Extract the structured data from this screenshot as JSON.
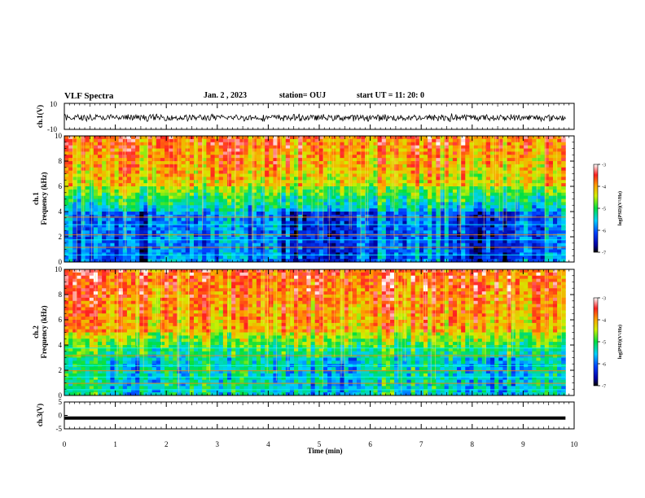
{
  "header": {
    "title": "VLF Spectra",
    "date": "Jan. 2 , 2023",
    "station": "station= OUJ",
    "start": "start  UT =   11: 20: 0"
  },
  "chart_data": [
    {
      "type": "line",
      "panel": "ch1-waveform",
      "ylabel": "ch.1(V)",
      "ylim": [
        -10,
        10
      ],
      "yticks": [
        "10",
        "-10"
      ],
      "xlim": [
        0,
        10
      ],
      "series": [
        {
          "description_only": true
        }
      ]
    },
    {
      "type": "heatmap",
      "panel": "ch1-spectrogram",
      "ylabel_line1": "ch.1",
      "ylabel_line2": "Frequency  (kHz)",
      "ylim": [
        0,
        10
      ],
      "yticks": [
        "0",
        "2",
        "4",
        "6",
        "8",
        "10"
      ],
      "xlim": [
        0,
        10
      ],
      "colorbar": {
        "label": "log(PSD)(V²/Hz)",
        "ticks": [
          "-3",
          "-4",
          "-5",
          "-6",
          "-7"
        ],
        "range": [
          -7,
          -3
        ]
      }
    },
    {
      "type": "heatmap",
      "panel": "ch2-spectrogram",
      "ylabel_line1": "ch.2",
      "ylabel_line2": "Frequency  (kHz)",
      "ylim": [
        0,
        10
      ],
      "yticks": [
        "0",
        "2",
        "4",
        "6",
        "8",
        "10"
      ],
      "xlim": [
        0,
        10
      ],
      "colorbar": {
        "label": "log(PSD)(V²/Hz)",
        "ticks": [
          "-3",
          "-4",
          "-5",
          "-6",
          "-7"
        ],
        "range": [
          -7,
          -3
        ]
      }
    },
    {
      "type": "line",
      "panel": "ch3-waveform",
      "ylabel": "ch.3(V)",
      "ylim": [
        -5,
        5
      ],
      "yticks": [
        "5",
        "0",
        "-5"
      ],
      "xlim": [
        0,
        10
      ],
      "series": [
        {
          "values": [
            -1,
            -1
          ]
        }
      ]
    }
  ],
  "xaxis": {
    "label": "Time  (min)",
    "ticks": [
      "0",
      "1",
      "2",
      "3",
      "4",
      "5",
      "6",
      "7",
      "8",
      "9",
      "10"
    ],
    "data_end": 9.83
  },
  "colors": {
    "background": "#ffffff",
    "line": "#000000"
  }
}
